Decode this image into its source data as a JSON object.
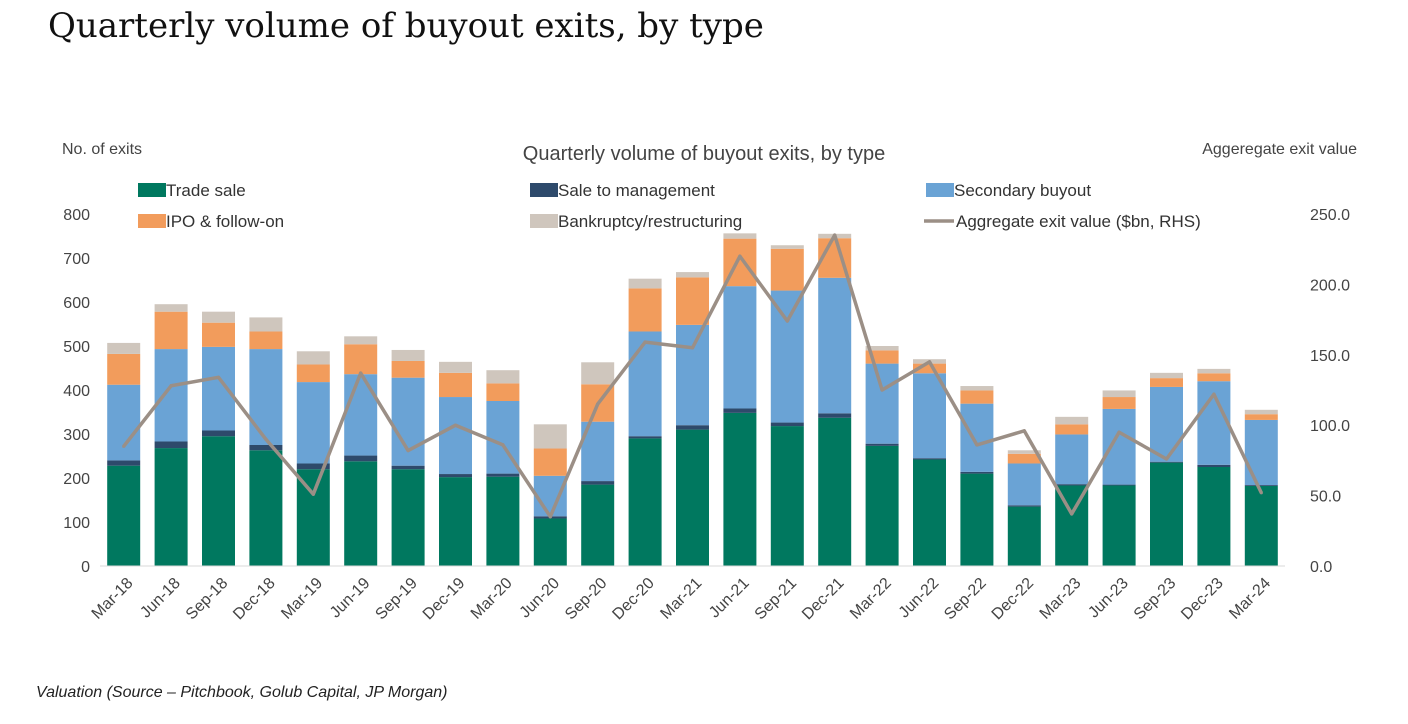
{
  "page": {
    "title": "Quarterly volume of buyout exits, by type",
    "caption": "Valuation (Source – Pitchbook, Golub Capital, JP Morgan)"
  },
  "chart_data": {
    "type": "bar",
    "stacked": true,
    "title": "Quarterly volume of buyout exits, by type",
    "ylabel": "No. of exits",
    "y2label": "Aggeregate exit value",
    "ylim": [
      0,
      800
    ],
    "y2lim": [
      0,
      250
    ],
    "yticks": [
      "0",
      "100",
      "200",
      "300",
      "400",
      "500",
      "600",
      "700",
      "800"
    ],
    "y2ticks": [
      "0.0",
      "50.0",
      "100.0",
      "150.0",
      "200.0",
      "250.0"
    ],
    "grid": false,
    "legend": "top",
    "categories": [
      "Mar-18",
      "Jun-18",
      "Sep-18",
      "Dec-18",
      "Mar-19",
      "Jun-19",
      "Sep-19",
      "Dec-19",
      "Mar-20",
      "Jun-20",
      "Sep-20",
      "Dec-20",
      "Mar-21",
      "Jun-21",
      "Sep-21",
      "Dec-21",
      "Mar-22",
      "Jun-22",
      "Sep-22",
      "Dec-22",
      "Mar-23",
      "Jun-23",
      "Sep-23",
      "Dec-23",
      "Mar-24"
    ],
    "series": [
      {
        "name": "Trade sale",
        "type": "bar",
        "color": "#00785f",
        "values": [
          228,
          268,
          295,
          263,
          220,
          238,
          220,
          202,
          203,
          108,
          185,
          290,
          310,
          348,
          318,
          337,
          273,
          242,
          210,
          135,
          183,
          183,
          235,
          225,
          182
        ]
      },
      {
        "name": "Sale to management",
        "type": "bar",
        "color": "#2e4a6b",
        "values": [
          12,
          15,
          13,
          12,
          13,
          13,
          8,
          7,
          7,
          5,
          8,
          5,
          10,
          10,
          8,
          10,
          5,
          3,
          4,
          3,
          3,
          2,
          2,
          5,
          2
        ]
      },
      {
        "name": "Secondary buyout",
        "type": "bar",
        "color": "#6aa3d5",
        "values": [
          172,
          210,
          190,
          218,
          185,
          185,
          200,
          175,
          165,
          92,
          135,
          238,
          228,
          278,
          300,
          308,
          182,
          193,
          155,
          95,
          113,
          172,
          170,
          190,
          148
        ]
      },
      {
        "name": "IPO & follow-on",
        "type": "bar",
        "color": "#f29c5c",
        "values": [
          70,
          85,
          55,
          40,
          40,
          68,
          38,
          55,
          40,
          62,
          85,
          98,
          108,
          108,
          95,
          90,
          30,
          22,
          30,
          22,
          23,
          27,
          20,
          18,
          13
        ]
      },
      {
        "name": "Bankruptcy/restructuring",
        "type": "bar",
        "color": "#cfc6bd",
        "values": [
          25,
          17,
          25,
          32,
          30,
          18,
          25,
          25,
          30,
          55,
          50,
          22,
          12,
          12,
          8,
          10,
          10,
          10,
          10,
          8,
          17,
          15,
          12,
          10,
          10
        ]
      },
      {
        "name": "Aggregate exit value ($bn, RHS)",
        "type": "line",
        "axis": "right",
        "color": "#9b8f86",
        "values": [
          85,
          128,
          134,
          90,
          51,
          137,
          82,
          100,
          86,
          35,
          115,
          159,
          155,
          220,
          174,
          235,
          125,
          145,
          86,
          96,
          37,
          95,
          76,
          122,
          52
        ]
      }
    ]
  }
}
